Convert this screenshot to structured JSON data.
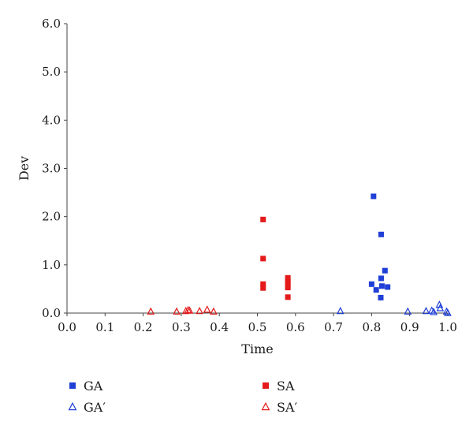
{
  "chart_data": {
    "type": "scatter",
    "xlabel": "Time",
    "ylabel": "Dev",
    "xlim": [
      0.0,
      1.0
    ],
    "ylim": [
      0.0,
      6.0
    ],
    "x_ticks": [
      "0.0",
      "0.1",
      "0.2",
      "0.3",
      "0.4",
      "0.5",
      "0.6",
      "0.7",
      "0.8",
      "0.9",
      "1.0"
    ],
    "y_ticks": [
      "0.0",
      "1.0",
      "2.0",
      "3.0",
      "4.0",
      "5.0",
      "6.0"
    ],
    "grid": false,
    "legend_position": "bottom",
    "series": [
      {
        "name": "GA",
        "marker": "filled-square",
        "color": "#1f3fd6",
        "points": [
          {
            "x": 0.805,
            "y": 2.42
          },
          {
            "x": 0.825,
            "y": 1.63
          },
          {
            "x": 0.835,
            "y": 0.88
          },
          {
            "x": 0.825,
            "y": 0.72
          },
          {
            "x": 0.8,
            "y": 0.6
          },
          {
            "x": 0.827,
            "y": 0.56
          },
          {
            "x": 0.842,
            "y": 0.54
          },
          {
            "x": 0.812,
            "y": 0.48
          },
          {
            "x": 0.824,
            "y": 0.32
          }
        ]
      },
      {
        "name": "SA",
        "marker": "filled-square",
        "color": "#e41a1a",
        "points": [
          {
            "x": 0.515,
            "y": 1.94
          },
          {
            "x": 0.515,
            "y": 1.13
          },
          {
            "x": 0.515,
            "y": 0.6
          },
          {
            "x": 0.515,
            "y": 0.52
          },
          {
            "x": 0.58,
            "y": 0.73
          },
          {
            "x": 0.58,
            "y": 0.66
          },
          {
            "x": 0.58,
            "y": 0.6
          },
          {
            "x": 0.58,
            "y": 0.53
          },
          {
            "x": 0.58,
            "y": 0.33
          }
        ]
      },
      {
        "name": "GA′",
        "marker": "open-triangle",
        "color": "#1f3fd6",
        "points": [
          {
            "x": 0.718,
            "y": 0.04
          },
          {
            "x": 0.895,
            "y": 0.03
          },
          {
            "x": 0.943,
            "y": 0.04
          },
          {
            "x": 0.958,
            "y": 0.05
          },
          {
            "x": 0.963,
            "y": 0.02
          },
          {
            "x": 0.978,
            "y": 0.17
          },
          {
            "x": 0.98,
            "y": 0.1
          },
          {
            "x": 0.997,
            "y": 0.03
          },
          {
            "x": 1.0,
            "y": 0.0
          }
        ]
      },
      {
        "name": "SA′",
        "marker": "open-triangle",
        "color": "#e41a1a",
        "points": [
          {
            "x": 0.22,
            "y": 0.03
          },
          {
            "x": 0.288,
            "y": 0.03
          },
          {
            "x": 0.312,
            "y": 0.04
          },
          {
            "x": 0.318,
            "y": 0.06
          },
          {
            "x": 0.322,
            "y": 0.05
          },
          {
            "x": 0.348,
            "y": 0.04
          },
          {
            "x": 0.368,
            "y": 0.07
          },
          {
            "x": 0.385,
            "y": 0.03
          }
        ]
      }
    ]
  }
}
